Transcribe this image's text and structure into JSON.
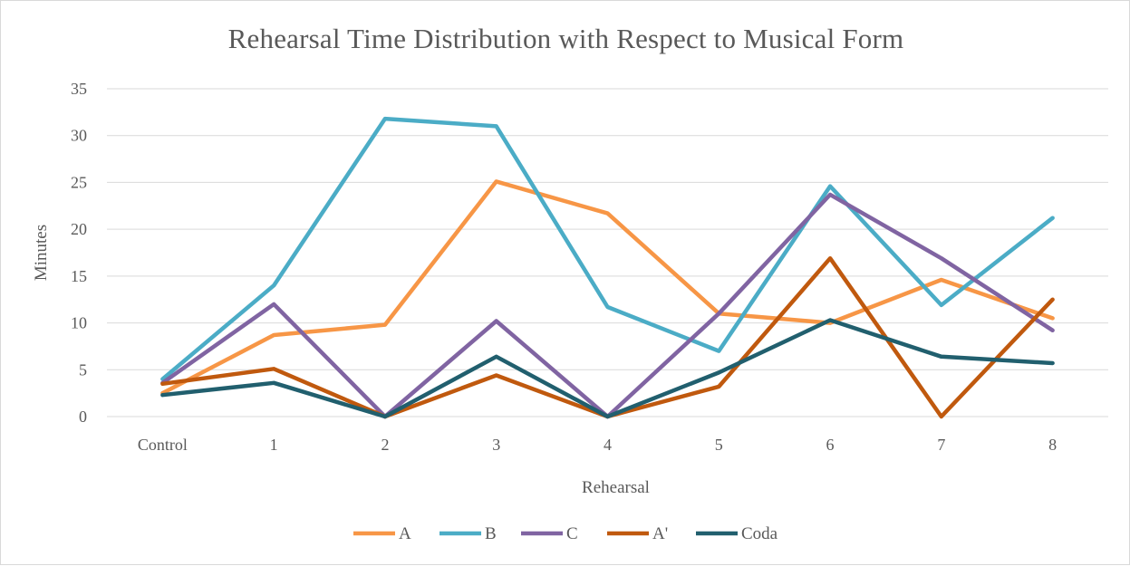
{
  "chart_data": {
    "type": "line",
    "title": "Rehearsal Time Distribution with Respect to Musical Form",
    "xlabel": "Rehearsal",
    "ylabel": "Minutes",
    "categories": [
      "Control",
      "1",
      "2",
      "3",
      "4",
      "5",
      "6",
      "7",
      "8"
    ],
    "ylim": [
      0,
      35
    ],
    "yticks": [
      0,
      5,
      10,
      15,
      20,
      25,
      30,
      35
    ],
    "grid": "horizontal",
    "legend_position": "bottom",
    "series": [
      {
        "name": "A",
        "color": "#F79646",
        "values": [
          2.5,
          8.7,
          9.8,
          25.1,
          21.7,
          11.0,
          10.0,
          14.6,
          10.5
        ]
      },
      {
        "name": "B",
        "color": "#4BACC6",
        "values": [
          4.0,
          14.0,
          31.8,
          31.0,
          11.7,
          7.0,
          24.6,
          11.9,
          21.2
        ]
      },
      {
        "name": "C",
        "color": "#8064A2",
        "values": [
          3.6,
          12.0,
          0.0,
          10.2,
          0.0,
          11.0,
          23.7,
          16.9,
          9.2
        ]
      },
      {
        "name": "A'",
        "color": "#C0590E",
        "values": [
          3.5,
          5.1,
          0.0,
          4.4,
          0.0,
          3.2,
          16.9,
          0.0,
          12.5
        ]
      },
      {
        "name": "Coda",
        "color": "#215F6E",
        "values": [
          2.3,
          3.6,
          0.0,
          6.4,
          0.0,
          4.7,
          10.3,
          6.4,
          5.7
        ]
      }
    ]
  }
}
